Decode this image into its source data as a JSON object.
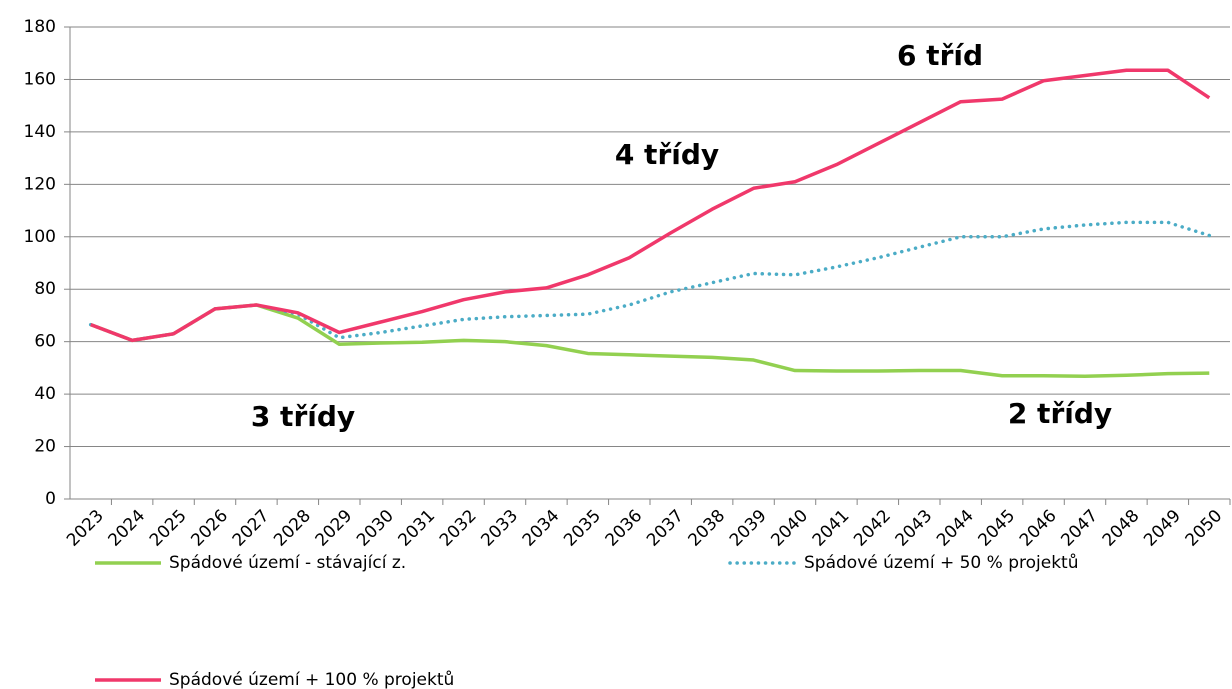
{
  "chart_data": {
    "type": "line",
    "categories": [
      "2023",
      "2024",
      "2025",
      "2026",
      "2027",
      "2028",
      "2029",
      "2030",
      "2031",
      "2032",
      "2033",
      "2034",
      "2035",
      "2036",
      "2037",
      "2038",
      "2039",
      "2040",
      "2041",
      "2042",
      "2043",
      "2044",
      "2045",
      "2046",
      "2047",
      "2048",
      "2049",
      "2050"
    ],
    "series": [
      {
        "name": "Spádové území - stávající z.",
        "color": "#92d050",
        "dash": "solid",
        "values": [
          66.5,
          60.5,
          63,
          72.5,
          74,
          69,
          59,
          59.5,
          59.8,
          60.5,
          60,
          58.5,
          55.5,
          55,
          54.5,
          54,
          53,
          49,
          48.8,
          48.8,
          49,
          49,
          47,
          47,
          46.8,
          47.2,
          47.8,
          48
        ]
      },
      {
        "name": "Spádové území + 50 % projektů",
        "color": "#4bacc6",
        "dash": "dotted",
        "values": [
          66.5,
          60.5,
          63,
          72.5,
          74,
          70.5,
          61.5,
          63.5,
          66,
          68.5,
          69.5,
          70,
          70.5,
          74,
          79,
          82.5,
          86,
          85.5,
          88.5,
          92,
          96,
          100,
          100,
          103,
          104.5,
          105.5,
          105.5,
          100.5
        ]
      },
      {
        "name": "Spádové území + 100 % projektů",
        "color": "#f0386b",
        "dash": "solid",
        "values": [
          66.5,
          60.5,
          63,
          72.5,
          74,
          71,
          63.5,
          67.5,
          71.5,
          76,
          79,
          80.5,
          85.5,
          92,
          101.5,
          110.5,
          118.5,
          121,
          127.5,
          135.5,
          143.5,
          151.5,
          152.5,
          159.5,
          161.5,
          163.5,
          163.5,
          153
        ]
      }
    ],
    "annotations": [
      {
        "text": "6 tříd",
        "color": "#ff0000"
      },
      {
        "text": "4 třídy",
        "color": "#ff0000"
      },
      {
        "text": "3 třídy",
        "color": "#92d050"
      },
      {
        "text": "2 třídy",
        "color": "#92d050"
      }
    ],
    "ylim": [
      0,
      180
    ],
    "yticks": [
      0,
      20,
      40,
      60,
      80,
      100,
      120,
      140,
      160,
      180
    ],
    "grid": true
  }
}
